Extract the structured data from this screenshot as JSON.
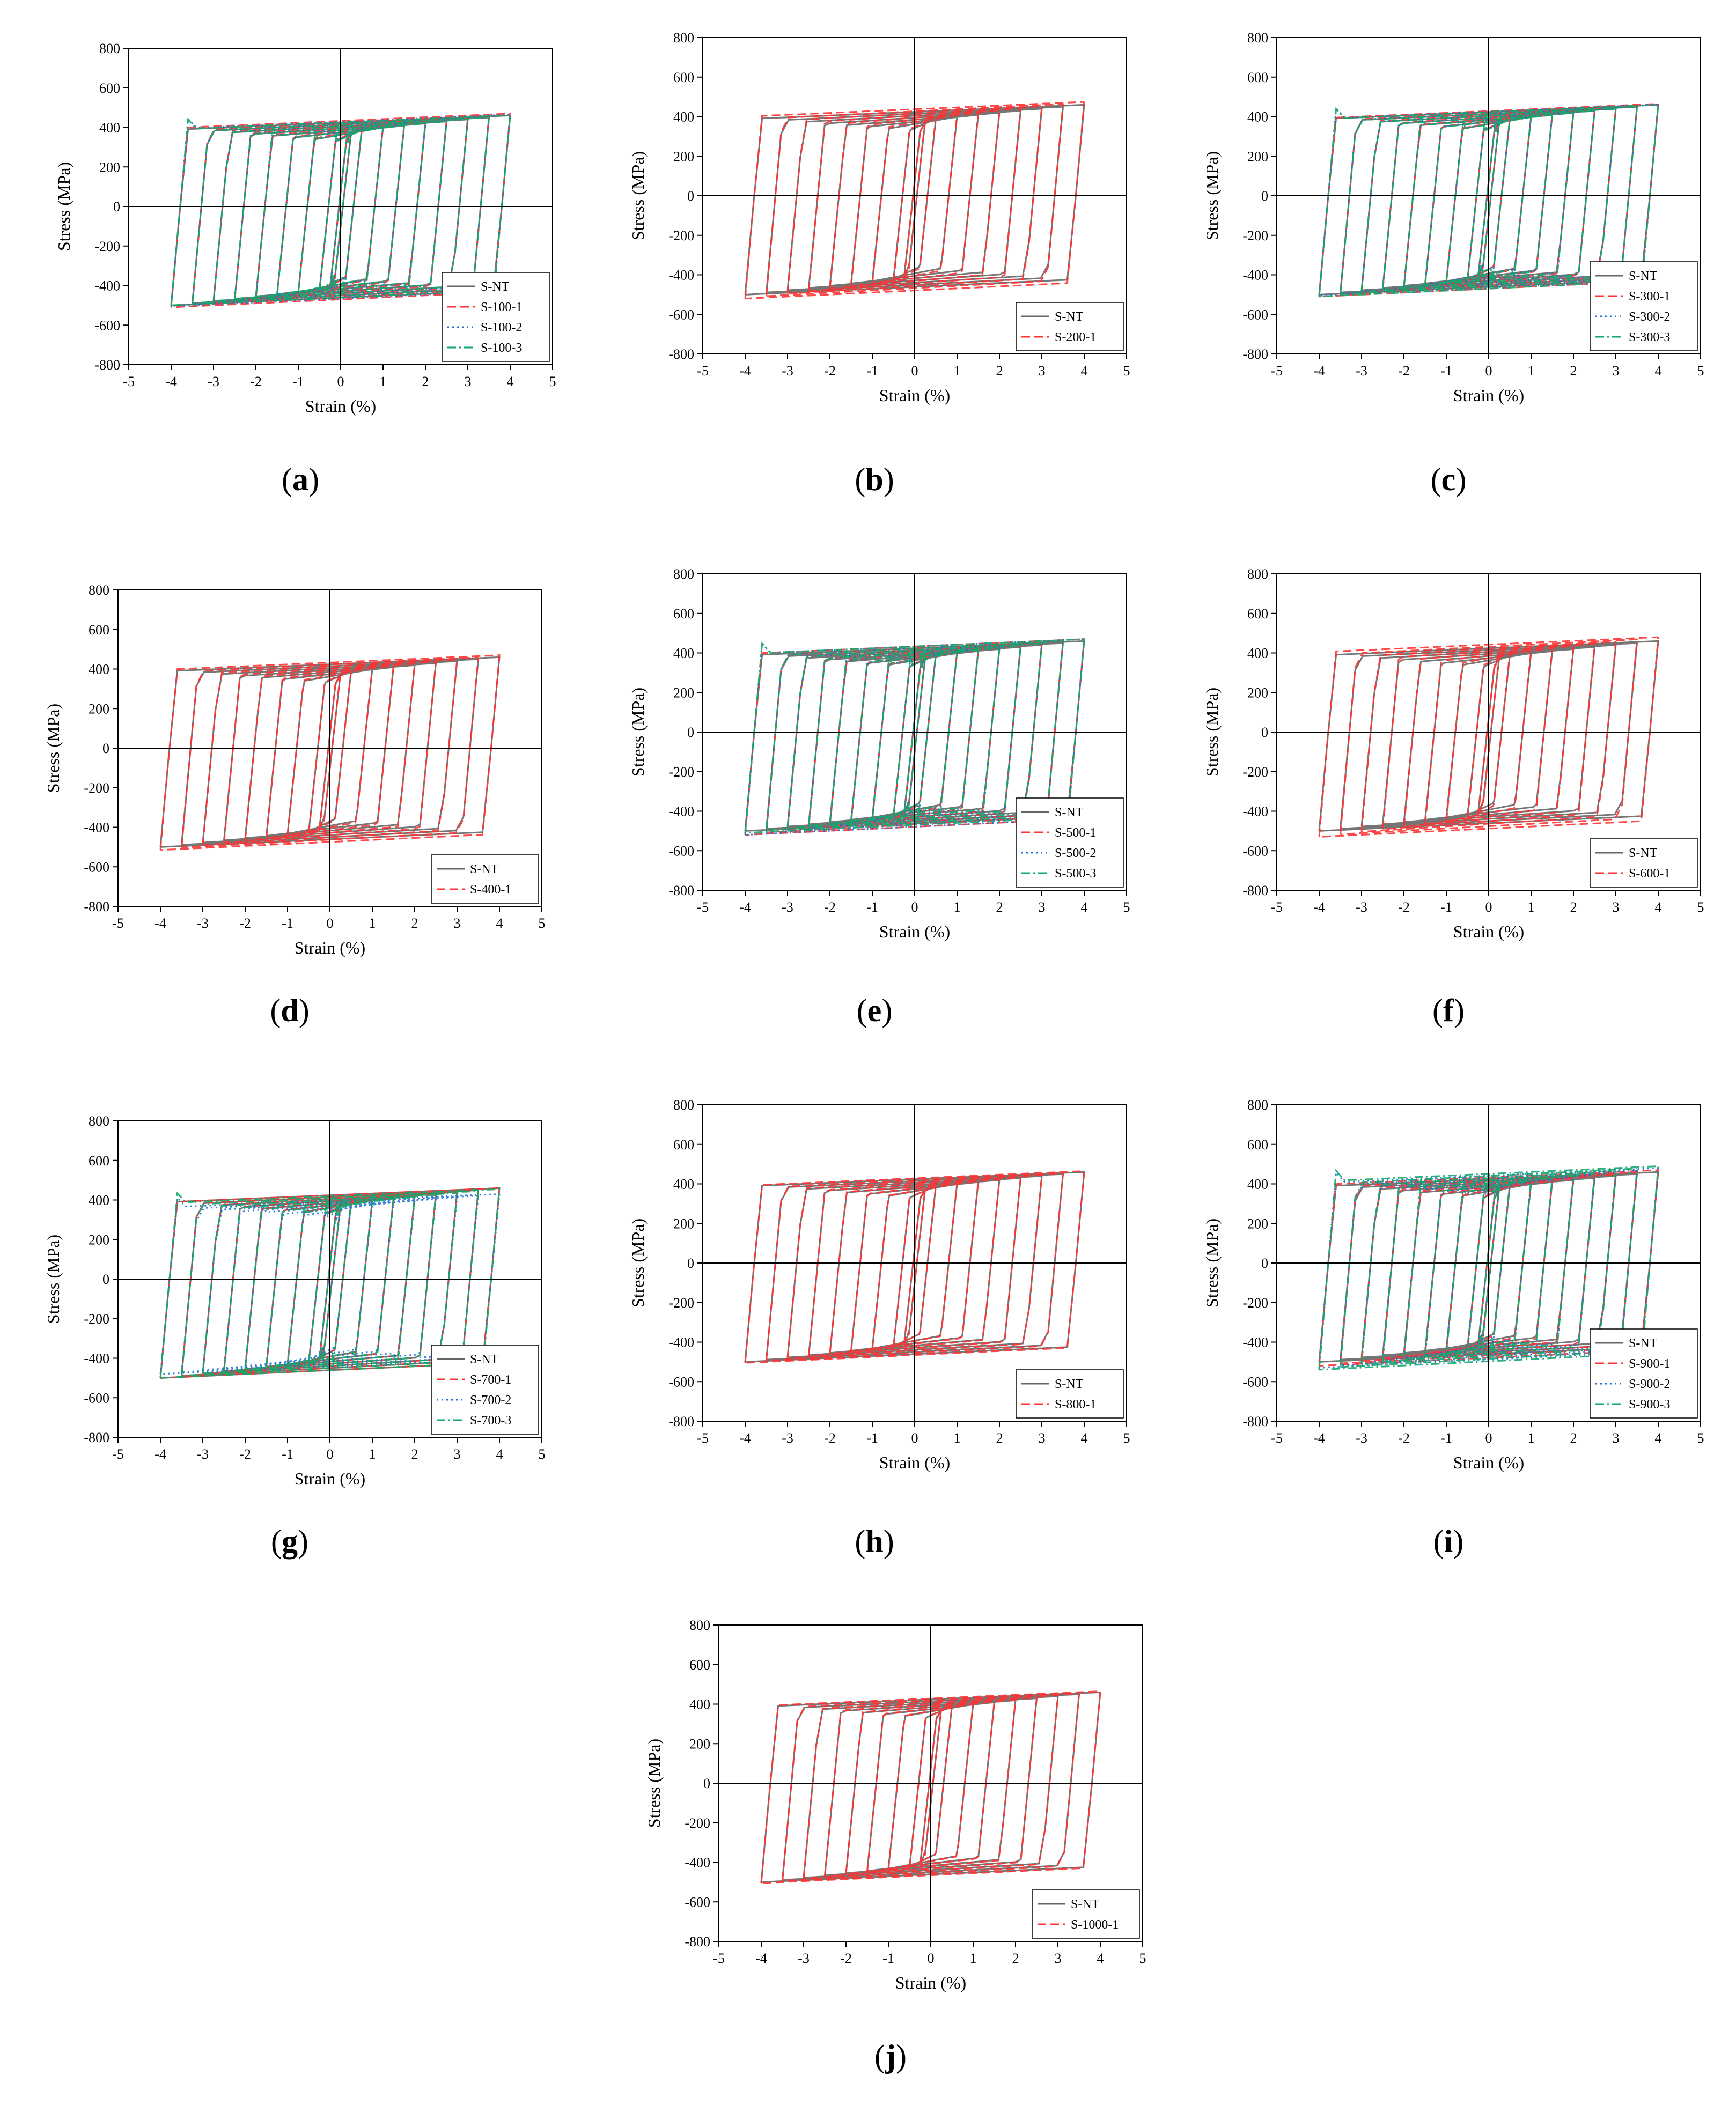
{
  "common": {
    "xlabel": "Strain (%)",
    "ylabel": "Stress (MPa)",
    "xlim": [
      -5,
      5
    ],
    "ylim": [
      -800,
      800
    ],
    "xticks": [
      -5,
      -4,
      -3,
      -2,
      -1,
      0,
      1,
      2,
      3,
      4,
      5
    ],
    "yticks": [
      -800,
      -600,
      -400,
      -200,
      0,
      200,
      400,
      600,
      800
    ],
    "amplitudes": [
      0.25,
      0.5,
      1,
      1.5,
      2,
      2.5,
      3,
      3.5,
      4
    ],
    "colors": {
      "S-NT": "#666666",
      "red": "#ff3333",
      "blue": "#1f6fd6",
      "green": "#13a86b"
    }
  },
  "chart_data": [
    {
      "type": "line",
      "panel": "a",
      "panel_label": "a",
      "xlabel": "Strain (%)",
      "ylabel": "Stress (MPa)",
      "xlim": [
        -5,
        5
      ],
      "ylim": [
        -800,
        800
      ],
      "legend": "bottom-right",
      "series": [
        {
          "name": "S-NT",
          "color": "#666666",
          "dash": "solid",
          "peak_tension": 460,
          "peak_compression": -500
        },
        {
          "name": "S-100-1",
          "color": "#ff3333",
          "dash": "dashed",
          "peak_tension": 470,
          "peak_compression": -510
        },
        {
          "name": "S-100-2",
          "color": "#1f6fd6",
          "dash": "dotted",
          "peak_tension": 465,
          "peak_compression": -505
        },
        {
          "name": "S-100-3",
          "color": "#13a86b",
          "dash": "dashdot",
          "peak_tension": 462,
          "peak_compression": -500
        }
      ]
    },
    {
      "type": "line",
      "panel": "b",
      "panel_label": "b",
      "xlabel": "Strain (%)",
      "ylabel": "Stress (MPa)",
      "xlim": [
        -5,
        5
      ],
      "ylim": [
        -800,
        800
      ],
      "legend": "bottom-right",
      "series": [
        {
          "name": "S-NT",
          "color": "#666666",
          "dash": "solid",
          "peak_tension": 460,
          "peak_compression": -500
        },
        {
          "name": "S-200-1",
          "color": "#ff3333",
          "dash": "dashed",
          "peak_tension": 475,
          "peak_compression": -520
        }
      ]
    },
    {
      "type": "line",
      "panel": "c",
      "panel_label": "c",
      "xlabel": "Strain (%)",
      "ylabel": "Stress (MPa)",
      "xlim": [
        -5,
        5
      ],
      "ylim": [
        -800,
        800
      ],
      "legend": "bottom-right",
      "series": [
        {
          "name": "S-NT",
          "color": "#666666",
          "dash": "solid",
          "peak_tension": 460,
          "peak_compression": -500
        },
        {
          "name": "S-300-1",
          "color": "#ff3333",
          "dash": "dashed",
          "peak_tension": 465,
          "peak_compression": -510
        },
        {
          "name": "S-300-2",
          "color": "#1f6fd6",
          "dash": "dotted",
          "peak_tension": 462,
          "peak_compression": -505
        },
        {
          "name": "S-300-3",
          "color": "#13a86b",
          "dash": "dashdot",
          "peak_tension": 460,
          "peak_compression": -510
        }
      ]
    },
    {
      "type": "line",
      "panel": "d",
      "panel_label": "d",
      "xlabel": "Strain (%)",
      "ylabel": "Stress (MPa)",
      "xlim": [
        -5,
        5
      ],
      "ylim": [
        -800,
        800
      ],
      "legend": "bottom-right",
      "series": [
        {
          "name": "S-NT",
          "color": "#666666",
          "dash": "solid",
          "peak_tension": 460,
          "peak_compression": -500
        },
        {
          "name": "S-400-1",
          "color": "#ff3333",
          "dash": "dashed",
          "peak_tension": 470,
          "peak_compression": -515
        }
      ]
    },
    {
      "type": "line",
      "panel": "e",
      "panel_label": "e",
      "xlabel": "Strain (%)",
      "ylabel": "Stress (MPa)",
      "xlim": [
        -5,
        5
      ],
      "ylim": [
        -800,
        800
      ],
      "legend": "bottom-right",
      "series": [
        {
          "name": "S-NT",
          "color": "#666666",
          "dash": "solid",
          "peak_tension": 460,
          "peak_compression": -500
        },
        {
          "name": "S-500-1",
          "color": "#ff3333",
          "dash": "dashed",
          "peak_tension": 470,
          "peak_compression": -520
        },
        {
          "name": "S-500-2",
          "color": "#1f6fd6",
          "dash": "dotted",
          "peak_tension": 470,
          "peak_compression": -520
        },
        {
          "name": "S-500-3",
          "color": "#13a86b",
          "dash": "dashdot",
          "peak_tension": 470,
          "peak_compression": -510
        }
      ]
    },
    {
      "type": "line",
      "panel": "f",
      "panel_label": "f",
      "xlabel": "Strain (%)",
      "ylabel": "Stress (MPa)",
      "xlim": [
        -5,
        5
      ],
      "ylim": [
        -800,
        800
      ],
      "legend": "bottom-right",
      "series": [
        {
          "name": "S-NT",
          "color": "#666666",
          "dash": "solid",
          "peak_tension": 460,
          "peak_compression": -500
        },
        {
          "name": "S-600-1",
          "color": "#ff3333",
          "dash": "dashed",
          "peak_tension": 480,
          "peak_compression": -530
        }
      ]
    },
    {
      "type": "line",
      "panel": "g",
      "panel_label": "g",
      "xlabel": "Strain (%)",
      "ylabel": "Stress (MPa)",
      "xlim": [
        -5,
        5
      ],
      "ylim": [
        -800,
        800
      ],
      "legend": "bottom-right",
      "series": [
        {
          "name": "S-NT",
          "color": "#666666",
          "dash": "solid",
          "peak_tension": 460,
          "peak_compression": -500
        },
        {
          "name": "S-700-1",
          "color": "#ff3333",
          "dash": "dashed",
          "peak_tension": 460,
          "peak_compression": -500
        },
        {
          "name": "S-700-2",
          "color": "#1f6fd6",
          "dash": "dotted",
          "peak_tension": 430,
          "peak_compression": -480
        },
        {
          "name": "S-700-3",
          "color": "#13a86b",
          "dash": "dashdot",
          "peak_tension": 455,
          "peak_compression": -500
        }
      ]
    },
    {
      "type": "line",
      "panel": "h",
      "panel_label": "h",
      "xlabel": "Strain (%)",
      "ylabel": "Stress (MPa)",
      "xlim": [
        -5,
        5
      ],
      "ylim": [
        -800,
        800
      ],
      "legend": "bottom-right",
      "series": [
        {
          "name": "S-NT",
          "color": "#666666",
          "dash": "solid",
          "peak_tension": 460,
          "peak_compression": -500
        },
        {
          "name": "S-800-1",
          "color": "#ff3333",
          "dash": "dashed",
          "peak_tension": 465,
          "peak_compression": -505
        }
      ]
    },
    {
      "type": "line",
      "panel": "i",
      "panel_label": "i",
      "xlabel": "Strain (%)",
      "ylabel": "Stress (MPa)",
      "xlim": [
        -5,
        5
      ],
      "ylim": [
        -800,
        800
      ],
      "legend": "bottom-right",
      "series": [
        {
          "name": "S-NT",
          "color": "#666666",
          "dash": "solid",
          "peak_tension": 460,
          "peak_compression": -500
        },
        {
          "name": "S-900-1",
          "color": "#ff3333",
          "dash": "dashed",
          "peak_tension": 470,
          "peak_compression": -520
        },
        {
          "name": "S-900-2",
          "color": "#1f6fd6",
          "dash": "dotted",
          "peak_tension": 480,
          "peak_compression": -530
        },
        {
          "name": "S-900-3",
          "color": "#13a86b",
          "dash": "dashdot",
          "peak_tension": 490,
          "peak_compression": -540
        }
      ]
    },
    {
      "type": "line",
      "panel": "j",
      "panel_label": "j",
      "xlabel": "Strain (%)",
      "ylabel": "Stress (MPa)",
      "xlim": [
        -5,
        5
      ],
      "ylim": [
        -800,
        800
      ],
      "legend": "bottom-right",
      "series": [
        {
          "name": "S-NT",
          "color": "#666666",
          "dash": "solid",
          "peak_tension": 460,
          "peak_compression": -500
        },
        {
          "name": "S-1000-1",
          "color": "#ff3333",
          "dash": "dashed",
          "peak_tension": 465,
          "peak_compression": -505
        }
      ]
    }
  ]
}
